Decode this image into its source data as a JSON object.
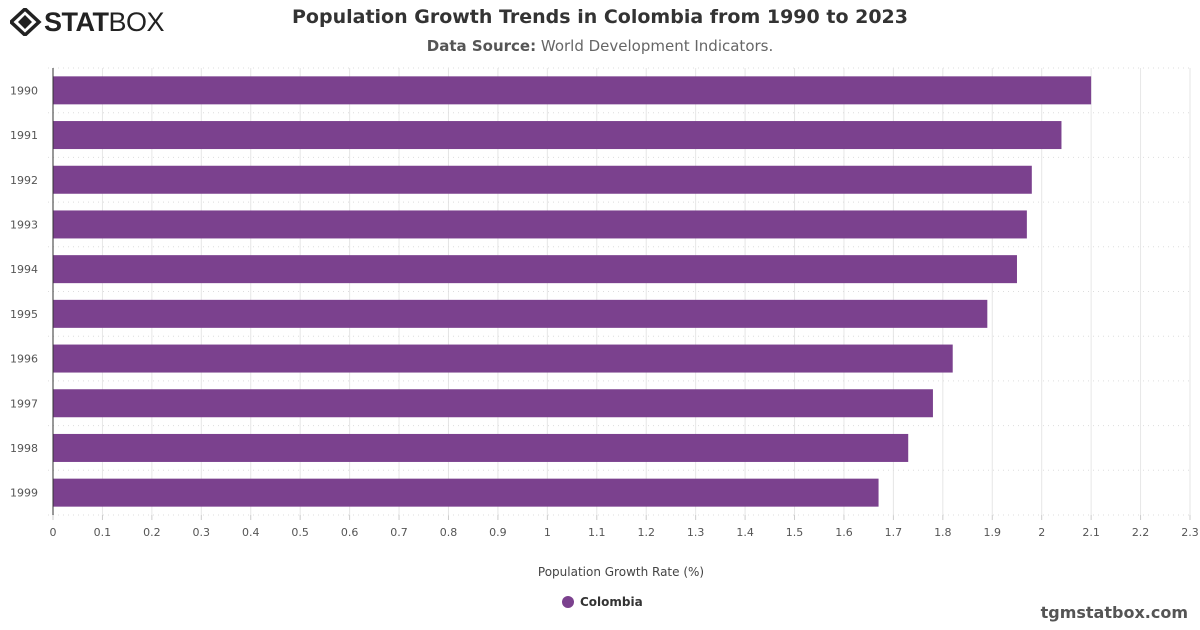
{
  "logo": {
    "text_bold": "STAT",
    "text_light": "BOX"
  },
  "header": {
    "title": "Population Growth Trends in Colombia from 1990 to 2023",
    "source_label": "Data Source:",
    "source_value": "World Development Indicators."
  },
  "credit": "tgmstatbox.com",
  "colors": {
    "bar": "#7b418e",
    "grid": "#e6e6e6",
    "text": "#333333"
  },
  "chart_data": {
    "type": "bar",
    "orientation": "horizontal",
    "title": "Population Growth Trends in Colombia from 1990 to 2023",
    "xlabel": "Population Growth Rate (%)",
    "ylabel": "",
    "xlim": [
      0,
      2.3
    ],
    "x_ticks": [
      "0",
      "0.1",
      "0.2",
      "0.3",
      "0.4",
      "0.5",
      "0.6",
      "0.7",
      "0.8",
      "0.9",
      "1",
      "1.1",
      "1.2",
      "1.3",
      "1.4",
      "1.5",
      "1.6",
      "1.7",
      "1.8",
      "1.9",
      "2",
      "2.1",
      "2.2",
      "2.3"
    ],
    "categories": [
      "1990",
      "1991",
      "1992",
      "1993",
      "1994",
      "1995",
      "1996",
      "1997",
      "1998",
      "1999"
    ],
    "series": [
      {
        "name": "Colombia",
        "values": [
          2.1,
          2.04,
          1.98,
          1.97,
          1.95,
          1.89,
          1.82,
          1.78,
          1.73,
          1.67
        ]
      }
    ],
    "grid": true,
    "legend": "bottom-center"
  }
}
